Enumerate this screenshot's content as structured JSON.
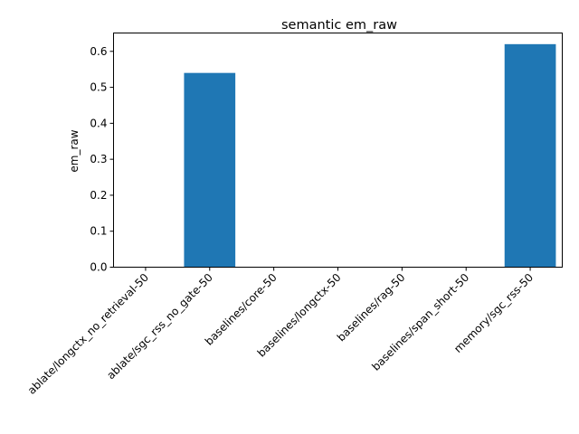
{
  "chart_data": {
    "type": "bar",
    "title": "semantic em_raw",
    "xlabel": "",
    "ylabel": "em_raw",
    "categories": [
      "ablate/longctx_no_retrieval-50",
      "ablate/sgc_rss_no_gate-50",
      "baselines/core-50",
      "baselines/longctx-50",
      "baselines/rag-50",
      "baselines/span_short-50",
      "memory/sgc_rss-50"
    ],
    "values": [
      0.0,
      0.54,
      0.0,
      0.0,
      0.0,
      0.0,
      0.62
    ],
    "ylim": [
      0,
      0.651
    ],
    "yticks": [
      0.0,
      0.1,
      0.2,
      0.3,
      0.4,
      0.5,
      0.6
    ],
    "ytick_labels": [
      "0.0",
      "0.1",
      "0.2",
      "0.3",
      "0.4",
      "0.5",
      "0.6"
    ],
    "bar_color": "#1f77b4",
    "grid": false,
    "legend": "none"
  }
}
